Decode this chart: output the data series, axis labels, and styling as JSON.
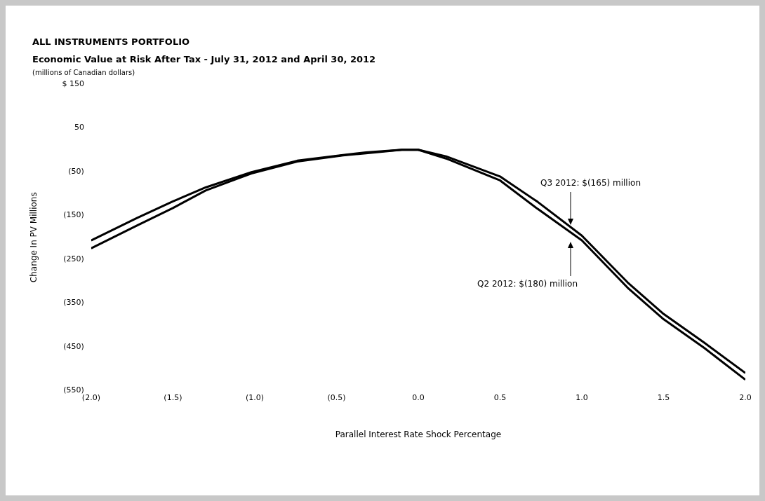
{
  "chart_data": {
    "type": "line",
    "title": "ALL INSTRUMENTS PORTFOLIO",
    "subtitle": "Economic Value at Risk After Tax - July 31, 2012 and April 30, 2012",
    "xlabel": "Parallel Interest Rate Shock Percentage",
    "ylabel": "Change In PV Millions",
    "annotations": [
      "(millions of Canadian dollars)",
      "Q3 2012: $(165) million",
      "Q2 2012: $(180) million"
    ],
    "series": [
      {
        "color": "#000000",
        "x": [
          -2,
          -1.72,
          -1.5,
          -1.3,
          -1.02,
          -0.74,
          -0.46,
          -0.32,
          -0.1,
          0,
          0.17,
          0.5,
          0.73,
          1,
          1.28,
          1.5,
          1.75,
          2
        ],
        "values": [
          -207,
          -156,
          -118,
          -86,
          -51,
          -25,
          -12,
          -6,
          0,
          0,
          -15,
          -61,
          -119,
          -196,
          -303,
          -375,
          -441,
          -510
        ]
      },
      {
        "color": "#000000",
        "x": [
          -2,
          -1.72,
          -1.5,
          -1.3,
          -1.02,
          -0.74,
          -0.46,
          -0.32,
          -0.1,
          0,
          0.17,
          0.5,
          0.73,
          1,
          1.28,
          1.5,
          1.75,
          2
        ],
        "values": [
          -225,
          -173,
          -133,
          -93,
          -54,
          -27,
          -13,
          -8,
          0,
          0,
          -20,
          -70,
          -135,
          -207,
          -315,
          -387,
          -453,
          -525
        ]
      }
    ],
    "xlim": [
      -2,
      2
    ],
    "xticks": [
      {
        "value": -2,
        "label": "(2.0)"
      },
      {
        "value": -1.5,
        "label": "(1.5)"
      },
      {
        "value": -1,
        "label": "(1.0)"
      },
      {
        "value": -0.5,
        "label": "(0.5)"
      },
      {
        "value": 0,
        "label": "0.0"
      },
      0.5,
      {
        "value": 1,
        "label": "1.0"
      },
      1.5,
      {
        "value": 2,
        "label": "2.0"
      }
    ],
    "ylim": [
      -550,
      150
    ],
    "yticks": [
      {
        "value": 150,
        "label": "$ 150"
      },
      50,
      {
        "value": -50,
        "label": "(50)"
      },
      {
        "value": -150,
        "label": "(150)"
      },
      {
        "value": -250,
        "label": "(250)"
      },
      {
        "value": -350,
        "label": "(350)"
      },
      {
        "value": -450,
        "label": "(450)"
      },
      {
        "value": -550,
        "label": "(550)"
      }
    ],
    "grid": false,
    "legend": false,
    "marker": "none",
    "line_style": "solid"
  }
}
